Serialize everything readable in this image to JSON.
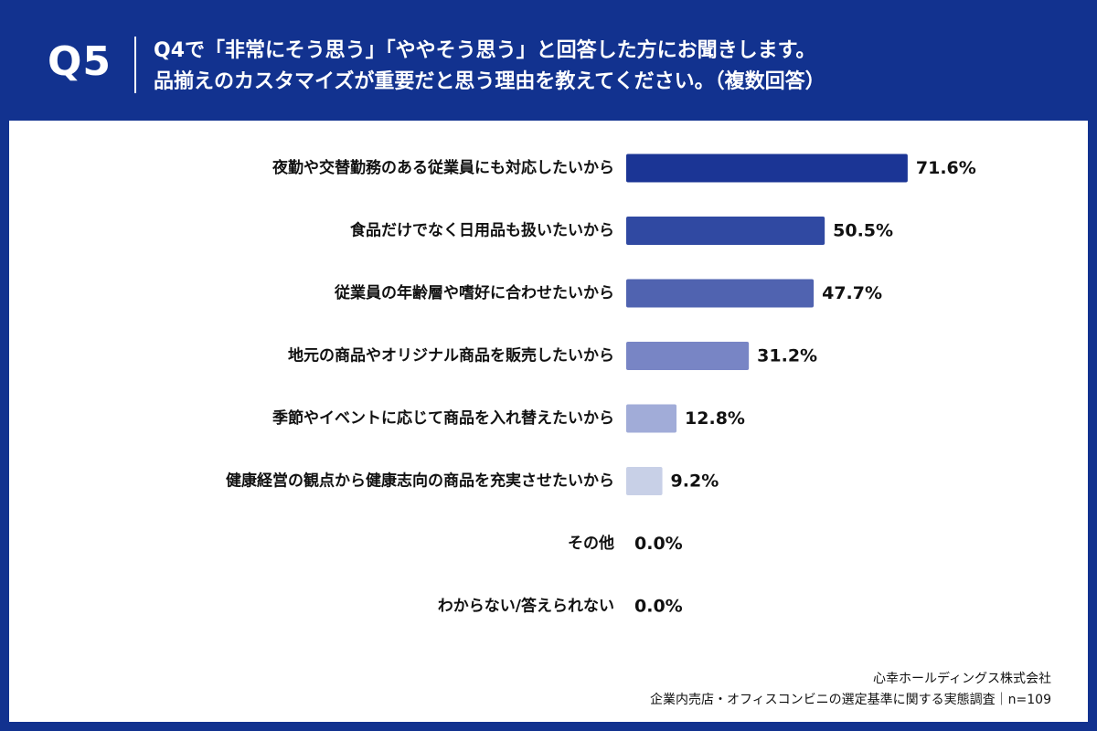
{
  "header": {
    "question_number": "Q5",
    "question_line1": "Q4で「非常にそう思う」「ややそう思う」と回答した方にお聞きします。",
    "question_line2": "品揃えのカスタマイズが重要だと思う理由を教えてください。（複数回答）"
  },
  "footer": {
    "company": "心幸ホールディングス株式会社",
    "survey": "企業内売店・オフィスコンビニの選定基準に関する実態調査｜n=109"
  },
  "colors": {
    "background": "#12328f",
    "panel": "#ffffff",
    "bars": [
      "#1b3595",
      "#3049a2",
      "#5063b0",
      "#7885c5",
      "#a1acd8",
      "#c8d0e7",
      "#dde2f0",
      "#dde2f0"
    ]
  },
  "chart_data": {
    "type": "bar",
    "orientation": "horizontal",
    "categories": [
      "夜勤や交替勤務のある従業員にも対応したいから",
      "食品だけでなく日用品も扱いたいから",
      "従業員の年齢層や嗜好に合わせたいから",
      "地元の商品やオリジナル商品を販売したいから",
      "季節やイベントに応じて商品を入れ替えたいから",
      "健康経営の観点から健康志向の商品を充実させたいから",
      "その他",
      "わからない/答えられない"
    ],
    "values": [
      71.6,
      50.5,
      47.7,
      31.2,
      12.8,
      9.2,
      0.0,
      0.0
    ],
    "value_labels": [
      "71.6%",
      "50.5%",
      "47.7%",
      "31.2%",
      "12.8%",
      "9.2%",
      "0.0%",
      "0.0%"
    ],
    "unit": "%",
    "xlim": [
      0,
      100
    ],
    "grid": false,
    "legend": "none"
  }
}
